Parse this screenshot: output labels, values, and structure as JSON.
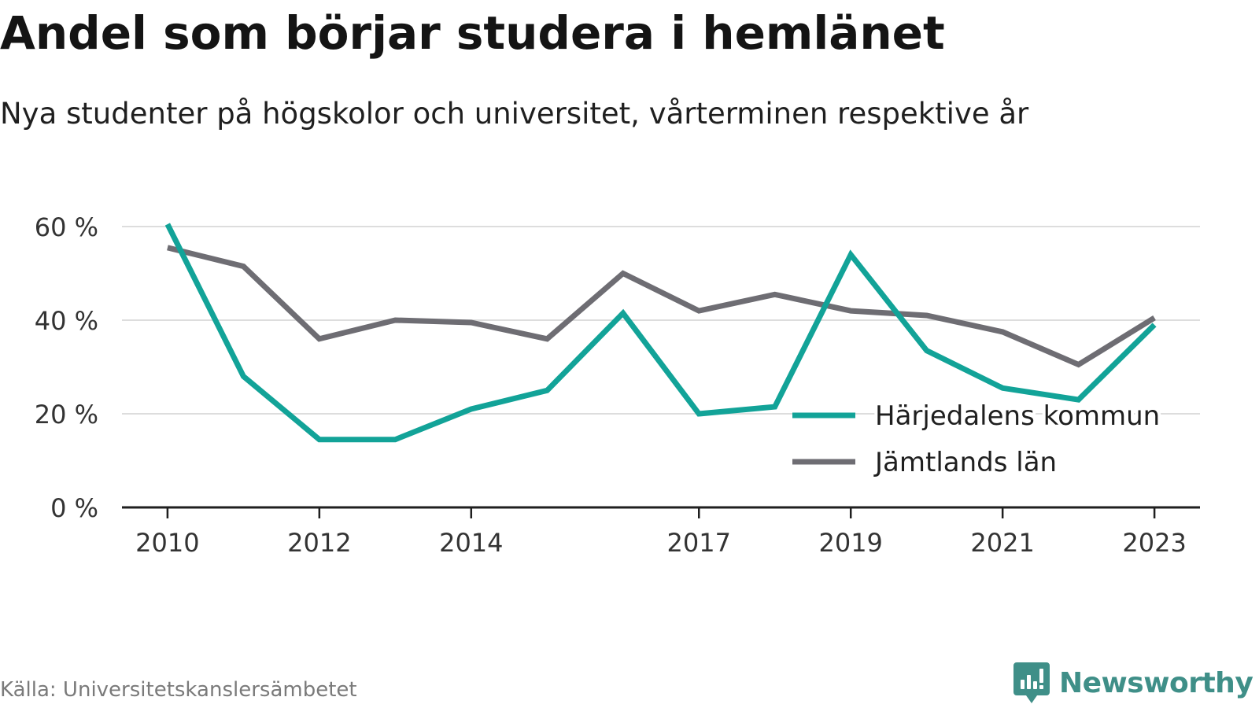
{
  "title": "Andel som börjar studera i hemlänet",
  "subtitle": "Nya studenter på högskolor och universitet, vårterminen respektive år",
  "source": "Källa: Universitetskanslersämbetet",
  "brand": {
    "name": "Newsworthy",
    "color": "#3f8f88",
    "icon": "newsworthy-logo-icon"
  },
  "colors": {
    "harjedalen": "#12a398",
    "jamtland": "#6e6d73",
    "grid": "#dddddd",
    "axis": "#1f1f1f",
    "tick_text": "#333333"
  },
  "chart_data": {
    "type": "line",
    "title": "Andel som börjar studera i hemlänet",
    "subtitle": "Nya studenter på högskolor och universitet, vårterminen respektive år",
    "x": [
      2010,
      2011,
      2012,
      2013,
      2014,
      2015,
      2016,
      2017,
      2018,
      2019,
      2020,
      2021,
      2022,
      2023
    ],
    "x_tick_labels": [
      "2010",
      "2012",
      "2014",
      "2017",
      "2019",
      "2021",
      "2023"
    ],
    "y_tick_labels": [
      "0 %",
      "20 %",
      "40 %",
      "60 %"
    ],
    "y_ticks": [
      0,
      20,
      40,
      60
    ],
    "ylim": [
      0,
      60
    ],
    "xlim": [
      2009.4,
      2023.6
    ],
    "y_unit": "%",
    "grid": true,
    "legend_position": "bottom-right",
    "series": [
      {
        "name": "Härjedalens kommun",
        "color": "#12a398",
        "values": [
          60.5,
          28,
          14.5,
          14.5,
          21,
          25,
          41.5,
          20,
          21.5,
          54,
          33.5,
          25.5,
          23,
          39
        ]
      },
      {
        "name": "Jämtlands län",
        "color": "#6e6d73",
        "values": [
          55.5,
          51.5,
          36,
          40,
          39.5,
          36,
          50,
          42,
          45.5,
          42,
          41,
          37.5,
          30.5,
          40.5
        ]
      }
    ]
  }
}
